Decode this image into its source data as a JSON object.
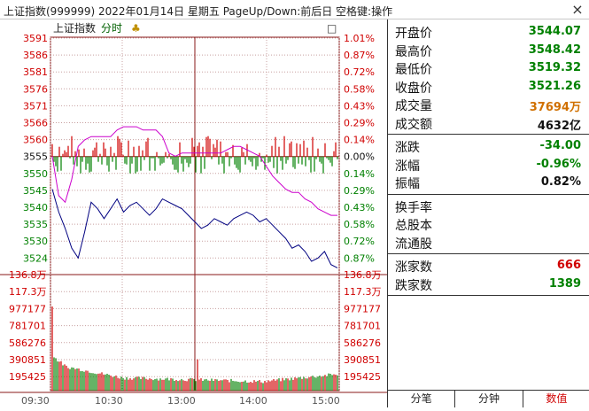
{
  "window": {
    "title": "上证指数(999999) 2022年01月14日 星期五 PageUp/Down:前后日 空格键:操作",
    "close_glyph": "×"
  },
  "chart_header": {
    "index_name": "上证指数",
    "mode": "分时",
    "indicator_glyph": "♣",
    "box_glyph": "□"
  },
  "left_axis_labels": [
    "3591",
    "3586",
    "3581",
    "3576",
    "3571",
    "3566",
    "3560",
    "3555",
    "3550",
    "3545",
    "3540",
    "3535",
    "3530",
    "3524"
  ],
  "right_axis_labels": [
    "1.01%",
    "0.87%",
    "0.72%",
    "0.58%",
    "0.43%",
    "0.29%",
    "0.14%",
    "0.00%",
    "0.14%",
    "0.29%",
    "0.43%",
    "0.58%",
    "0.72%",
    "0.87%"
  ],
  "volume_left_labels": [
    "136.8万",
    "117.3万",
    "977177",
    "781701",
    "586276",
    "390851",
    "195425"
  ],
  "volume_right_labels": [
    "136.8万",
    "117.3万",
    "977177",
    "781701",
    "586276",
    "390851",
    "195425"
  ],
  "time_labels": [
    "09:30",
    "10:30",
    "13:00",
    "14:00",
    "15:00"
  ],
  "colors": {
    "up": "#d00000",
    "down": "#008000",
    "price_line": "#000080",
    "avg_line": "#cc00cc",
    "grid": "#c8a0a0"
  },
  "chart_data": {
    "type": "line",
    "title": "",
    "xlabel": "",
    "ylabel": "",
    "ylim": [
      3524,
      3591
    ],
    "prev_close": 3555,
    "series": [
      {
        "values": [
          3545,
          3538,
          3533,
          3527,
          3524,
          3532,
          3541,
          3539,
          3536,
          3539,
          3542,
          3538,
          3540,
          3541,
          3539,
          3537,
          3539,
          3542,
          3541,
          3540,
          3539,
          3537,
          3535,
          3533,
          3534,
          3536,
          3535,
          3534,
          3536,
          3537,
          3538,
          3537,
          3535,
          3536,
          3534,
          3532,
          3530,
          3527,
          3528,
          3526,
          3523,
          3524,
          3526,
          3522,
          3521
        ]
      },
      {
        "values": [
          3555,
          3543,
          3541,
          3548,
          3558,
          3560,
          3561,
          3561,
          3561,
          3561,
          3563,
          3564,
          3564,
          3564,
          3563,
          3563,
          3563,
          3561,
          3556,
          3555,
          3556,
          3556,
          3556,
          3556,
          3556,
          3556,
          3556,
          3557,
          3558,
          3558,
          3557,
          3556,
          3555,
          3552,
          3549,
          3547,
          3545,
          3544,
          3544,
          3542,
          3541,
          3539,
          3538,
          3537,
          3537
        ]
      }
    ],
    "volume_ylim": [
      0,
      1368000
    ]
  },
  "stats": [
    {
      "label": "开盘价",
      "value": "3544.07",
      "color": "#008000"
    },
    {
      "label": "最高价",
      "value": "3548.42",
      "color": "#008000"
    },
    {
      "label": "最低价",
      "value": "3519.32",
      "color": "#008000"
    },
    {
      "label": "收盘价",
      "value": "3521.26",
      "color": "#008000"
    },
    {
      "label": "成交量",
      "value": "37694万",
      "color": "#d07000"
    },
    {
      "label": "成交额",
      "value": "4632亿",
      "color": "#111111"
    }
  ],
  "changes": [
    {
      "label": "涨跌",
      "value": "-34.00",
      "color": "#008000"
    },
    {
      "label": "涨幅",
      "value": "-0.96%",
      "color": "#008000"
    },
    {
      "label": "振幅",
      "value": "0.82%",
      "color": "#111111"
    }
  ],
  "extra": [
    {
      "label": "换手率",
      "value": ""
    },
    {
      "label": "总股本",
      "value": ""
    },
    {
      "label": "流通股",
      "value": ""
    }
  ],
  "breadth": [
    {
      "label": "涨家数",
      "value": "666",
      "color": "#d00000"
    },
    {
      "label": "跌家数",
      "value": "1389",
      "color": "#008000"
    }
  ],
  "tabs": [
    {
      "label": "分笔",
      "active": false
    },
    {
      "label": "分钟",
      "active": false
    },
    {
      "label": "数值",
      "active": true
    }
  ]
}
